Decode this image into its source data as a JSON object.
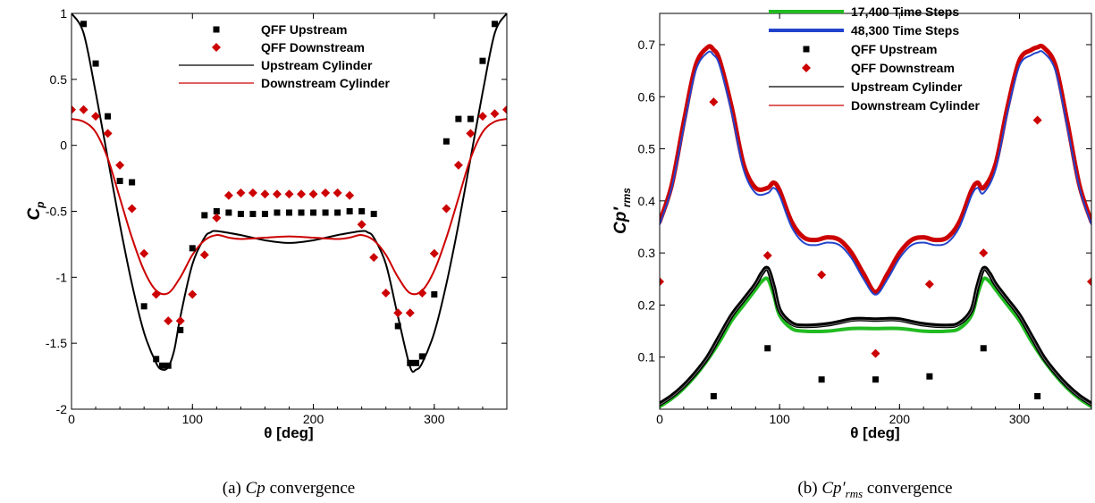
{
  "chart_data": [
    {
      "type": "line",
      "ylabel_main": "C",
      "ylabel_sub": "p",
      "xlabel": "θ [deg]",
      "caption": {
        "prefix": "(a) ",
        "math": "Cp",
        "suffix": " convergence"
      },
      "xlim": [
        0,
        360
      ],
      "ylim": [
        -2,
        1
      ],
      "xticks": [
        0,
        100,
        200,
        300
      ],
      "yticks": [
        1,
        0.5,
        0,
        -0.5,
        -1,
        -1.5,
        -2
      ],
      "ytick_labels": [
        "1",
        "0.5",
        "0",
        "-0.5",
        "-1",
        "-1.5",
        "-2"
      ],
      "legend": [
        {
          "label": "QFF Upstream",
          "kind": "square",
          "color": "#000000"
        },
        {
          "label": "QFF Downstream",
          "kind": "diamond",
          "color": "#cc0000"
        },
        {
          "label": "Upstream Cylinder",
          "kind": "line",
          "color": "#000000"
        },
        {
          "label": "Downstream Cylinder",
          "kind": "line",
          "color": "#cc0000"
        }
      ],
      "series": [
        {
          "name": "Upstream Cylinder",
          "kind": "line",
          "color": "#000000",
          "x": [
            0,
            10,
            20,
            30,
            40,
            50,
            60,
            70,
            75,
            80,
            85,
            90,
            100,
            110,
            115,
            120,
            140,
            160,
            180,
            200,
            220,
            240,
            245,
            250,
            260,
            270,
            280,
            285,
            290,
            300,
            310,
            320,
            330,
            340,
            350,
            360
          ],
          "y": [
            1.0,
            0.85,
            0.4,
            -0.1,
            -0.6,
            -1.05,
            -1.42,
            -1.65,
            -1.7,
            -1.68,
            -1.55,
            -1.3,
            -0.9,
            -0.7,
            -0.66,
            -0.65,
            -0.68,
            -0.72,
            -0.74,
            -0.72,
            -0.68,
            -0.65,
            -0.66,
            -0.7,
            -0.9,
            -1.3,
            -1.68,
            -1.7,
            -1.65,
            -1.42,
            -1.05,
            -0.6,
            -0.1,
            0.4,
            0.85,
            1.0
          ]
        },
        {
          "name": "Downstream Cylinder",
          "kind": "line",
          "color": "#cc0000",
          "x": [
            0,
            10,
            20,
            30,
            40,
            50,
            60,
            70,
            80,
            90,
            100,
            110,
            120,
            130,
            140,
            160,
            180,
            200,
            220,
            230,
            240,
            250,
            260,
            270,
            280,
            290,
            300,
            310,
            320,
            330,
            340,
            350,
            360
          ],
          "y": [
            0.2,
            0.18,
            0.1,
            -0.1,
            -0.4,
            -0.7,
            -0.95,
            -1.1,
            -1.12,
            -1.0,
            -0.83,
            -0.72,
            -0.68,
            -0.7,
            -0.71,
            -0.7,
            -0.69,
            -0.7,
            -0.71,
            -0.7,
            -0.68,
            -0.72,
            -0.83,
            -1.0,
            -1.12,
            -1.1,
            -0.95,
            -0.7,
            -0.4,
            -0.1,
            0.1,
            0.18,
            0.2
          ]
        },
        {
          "name": "QFF Upstream",
          "kind": "square",
          "color": "#000000",
          "x": [
            10,
            20,
            30,
            40,
            50,
            60,
            70,
            75,
            80,
            90,
            100,
            110,
            120,
            130,
            140,
            150,
            160,
            170,
            180,
            190,
            200,
            210,
            220,
            230,
            240,
            250,
            270,
            280,
            285,
            290,
            300,
            310,
            320,
            330,
            340,
            350
          ],
          "y": [
            0.92,
            0.62,
            0.22,
            -0.27,
            -0.28,
            -1.22,
            -1.62,
            -1.67,
            -1.67,
            -1.4,
            -0.78,
            -0.53,
            -0.5,
            -0.51,
            -0.52,
            -0.52,
            -0.52,
            -0.51,
            -0.51,
            -0.51,
            -0.51,
            -0.51,
            -0.51,
            -0.5,
            -0.5,
            -0.52,
            -1.37,
            -1.65,
            -1.65,
            -1.6,
            -1.13,
            0.03,
            0.2,
            0.2,
            0.64,
            0.92
          ]
        },
        {
          "name": "QFF Downstream",
          "kind": "diamond",
          "color": "#cc0000",
          "x": [
            0,
            10,
            20,
            30,
            40,
            50,
            60,
            70,
            80,
            90,
            100,
            110,
            120,
            130,
            140,
            150,
            160,
            170,
            180,
            190,
            200,
            210,
            220,
            230,
            240,
            250,
            260,
            270,
            280,
            290,
            300,
            310,
            320,
            330,
            340,
            350,
            360
          ],
          "y": [
            0.27,
            0.27,
            0.22,
            0.09,
            -0.15,
            -0.48,
            -0.82,
            -1.13,
            -1.33,
            -1.33,
            -1.13,
            -0.83,
            -0.55,
            -0.38,
            -0.36,
            -0.36,
            -0.37,
            -0.37,
            -0.37,
            -0.37,
            -0.37,
            -0.36,
            -0.36,
            -0.38,
            -0.6,
            -0.85,
            -1.12,
            -1.27,
            -1.27,
            -1.12,
            -0.82,
            -0.48,
            -0.15,
            0.09,
            0.22,
            0.24,
            0.27
          ]
        }
      ]
    },
    {
      "type": "line",
      "ylabel_main": "Cp′",
      "ylabel_sub": "rms",
      "xlabel": "θ [deg]",
      "caption": {
        "prefix": "(b) ",
        "math": "Cp′",
        "math_sub": "rms",
        "suffix": " convergence"
      },
      "xlim": [
        0,
        360
      ],
      "ylim": [
        0,
        0.76
      ],
      "xticks": [
        0,
        100,
        200,
        300
      ],
      "yticks": [
        0.1,
        0.2,
        0.3,
        0.4,
        0.5,
        0.6,
        0.7
      ],
      "ytick_labels": [
        "0.1",
        "0.2",
        "0.3",
        "0.4",
        "0.5",
        "0.6",
        "0.7"
      ],
      "legend": [
        {
          "label": "17,400 Time Steps",
          "kind": "thickline",
          "color": "#22bb22"
        },
        {
          "label": "48,300 Time Steps",
          "kind": "thickline",
          "color": "#2244cc"
        },
        {
          "label": "QFF Upstream",
          "kind": "square",
          "color": "#000000"
        },
        {
          "label": "QFF Downstream",
          "kind": "diamond",
          "color": "#cc0000"
        },
        {
          "label": "Upstream Cylinder",
          "kind": "line",
          "color": "#000000"
        },
        {
          "label": "Downstream Cylinder",
          "kind": "line",
          "color": "#cc0000"
        }
      ],
      "series": [
        {
          "name": "Downstream Cylinder",
          "kind": "band",
          "color": "#cc0000",
          "width": 5,
          "x": [
            0,
            10,
            20,
            30,
            40,
            45,
            50,
            60,
            70,
            80,
            90,
            95,
            100,
            110,
            120,
            130,
            140,
            150,
            160,
            170,
            180,
            190,
            200,
            210,
            220,
            230,
            240,
            250,
            260,
            265,
            270,
            280,
            290,
            300,
            310,
            315,
            320,
            330,
            340,
            350,
            360
          ],
          "y": [
            0.36,
            0.43,
            0.55,
            0.66,
            0.695,
            0.69,
            0.67,
            0.58,
            0.47,
            0.425,
            0.425,
            0.435,
            0.42,
            0.36,
            0.33,
            0.325,
            0.33,
            0.325,
            0.3,
            0.26,
            0.225,
            0.26,
            0.3,
            0.325,
            0.33,
            0.325,
            0.33,
            0.36,
            0.42,
            0.435,
            0.425,
            0.47,
            0.58,
            0.67,
            0.69,
            0.695,
            0.695,
            0.66,
            0.55,
            0.43,
            0.36
          ]
        },
        {
          "name": "48,300 Time Steps",
          "kind": "band",
          "color": "#2244cc",
          "width": 2,
          "x": [
            0,
            10,
            20,
            30,
            40,
            45,
            50,
            60,
            70,
            80,
            90,
            95,
            100,
            110,
            120,
            130,
            140,
            150,
            160,
            170,
            180,
            190,
            200,
            210,
            220,
            230,
            240,
            250,
            260,
            265,
            270,
            280,
            290,
            300,
            310,
            315,
            320,
            330,
            340,
            350,
            360
          ],
          "y": [
            0.355,
            0.425,
            0.54,
            0.65,
            0.685,
            0.68,
            0.66,
            0.57,
            0.46,
            0.415,
            0.415,
            0.425,
            0.41,
            0.35,
            0.32,
            0.315,
            0.32,
            0.315,
            0.29,
            0.25,
            0.22,
            0.25,
            0.29,
            0.315,
            0.32,
            0.315,
            0.32,
            0.35,
            0.41,
            0.425,
            0.415,
            0.46,
            0.57,
            0.66,
            0.68,
            0.685,
            0.685,
            0.65,
            0.54,
            0.425,
            0.355
          ]
        },
        {
          "name": "17,400 Time Steps",
          "kind": "band",
          "color": "#22bb22",
          "width": 4,
          "x": [
            0,
            10,
            20,
            30,
            40,
            50,
            60,
            70,
            80,
            85,
            90,
            95,
            100,
            110,
            120,
            140,
            160,
            180,
            200,
            220,
            240,
            250,
            260,
            265,
            270,
            275,
            280,
            290,
            300,
            310,
            320,
            330,
            340,
            350,
            360
          ],
          "y": [
            0.005,
            0.02,
            0.04,
            0.065,
            0.095,
            0.13,
            0.17,
            0.2,
            0.23,
            0.245,
            0.25,
            0.22,
            0.18,
            0.155,
            0.15,
            0.15,
            0.155,
            0.155,
            0.155,
            0.15,
            0.15,
            0.155,
            0.18,
            0.22,
            0.25,
            0.245,
            0.23,
            0.2,
            0.17,
            0.13,
            0.095,
            0.065,
            0.04,
            0.02,
            0.005
          ]
        },
        {
          "name": "Upstream Cylinder",
          "kind": "band",
          "color": "#000000",
          "width": 5,
          "x": [
            0,
            10,
            20,
            30,
            40,
            50,
            60,
            70,
            80,
            85,
            90,
            95,
            100,
            110,
            120,
            140,
            160,
            170,
            180,
            190,
            200,
            220,
            240,
            250,
            260,
            265,
            270,
            275,
            280,
            290,
            300,
            310,
            320,
            330,
            340,
            350,
            360
          ],
          "y": [
            0.01,
            0.025,
            0.045,
            0.07,
            0.1,
            0.14,
            0.18,
            0.21,
            0.24,
            0.26,
            0.27,
            0.235,
            0.19,
            0.165,
            0.16,
            0.163,
            0.172,
            0.173,
            0.172,
            0.173,
            0.172,
            0.163,
            0.16,
            0.165,
            0.19,
            0.235,
            0.27,
            0.26,
            0.24,
            0.21,
            0.18,
            0.14,
            0.1,
            0.07,
            0.045,
            0.025,
            0.01
          ]
        },
        {
          "name": "QFF Upstream",
          "kind": "square",
          "color": "#000000",
          "x": [
            45,
            90,
            135,
            180,
            225,
            270,
            315
          ],
          "y": [
            0.025,
            0.117,
            0.057,
            0.057,
            0.063,
            0.117,
            0.025
          ]
        },
        {
          "name": "QFF Downstream",
          "kind": "diamond",
          "color": "#cc0000",
          "x": [
            0,
            45,
            90,
            135,
            180,
            225,
            270,
            315,
            360
          ],
          "y": [
            0.245,
            0.59,
            0.295,
            0.258,
            0.107,
            0.24,
            0.3,
            0.555,
            0.245
          ]
        }
      ]
    }
  ]
}
